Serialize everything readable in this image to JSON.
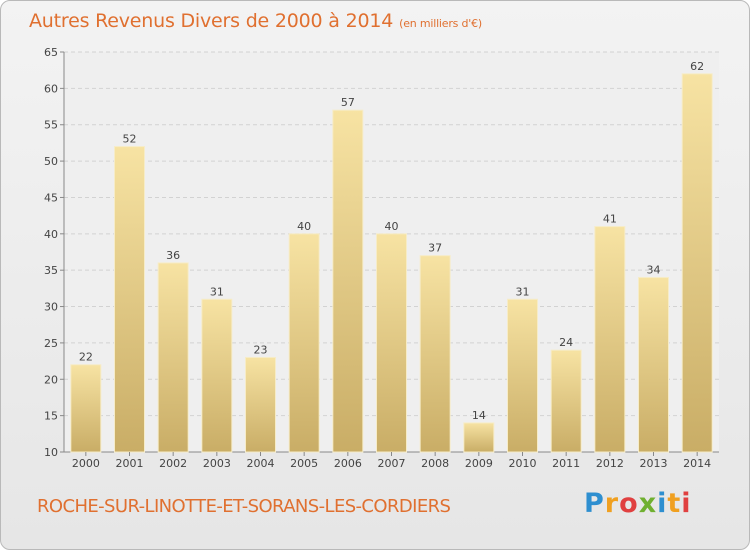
{
  "title": "Autres Revenus Divers de 2000 à 2014",
  "title_unit": "(en milliers d'€)",
  "commune": "ROCHE-SUR-LINOTTE-ET-SORANS-LES-CORDIERS",
  "brand": {
    "name": "Proxiti",
    "letters": [
      "P",
      "r",
      "o",
      "x",
      "i",
      "t",
      "i"
    ],
    "colors": [
      "#2e8fd0",
      "#f0a020",
      "#e04040",
      "#70b030",
      "#2e8fd0",
      "#f0a020",
      "#e04040"
    ]
  },
  "colors": {
    "title": "#e07030",
    "bar_light": "#f7e3a3",
    "bar_dark": "#c9ad66",
    "grid": "#d2d2d2",
    "axis_text": "#444444"
  },
  "chart_data": {
    "type": "bar",
    "categories": [
      "2000",
      "2001",
      "2002",
      "2003",
      "2004",
      "2005",
      "2006",
      "2007",
      "2008",
      "2009",
      "2010",
      "2011",
      "2012",
      "2013",
      "2014"
    ],
    "values": [
      22,
      52,
      36,
      31,
      23,
      40,
      57,
      40,
      37,
      14,
      31,
      24,
      41,
      34,
      62
    ],
    "data_labels": [
      "22",
      "52",
      "36",
      "31",
      "23",
      "40",
      "57",
      "40",
      "37",
      "14",
      "31",
      "24",
      "41",
      "34",
      "62"
    ],
    "yticks": [
      "10",
      "15",
      "20",
      "25",
      "30",
      "35",
      "40",
      "45",
      "50",
      "55",
      "60",
      "65"
    ],
    "ylim": [
      10,
      65
    ],
    "grid": true,
    "legend": "none",
    "title": "Autres Revenus Divers de 2000 à 2014",
    "xlabel": "",
    "ylabel": ""
  }
}
